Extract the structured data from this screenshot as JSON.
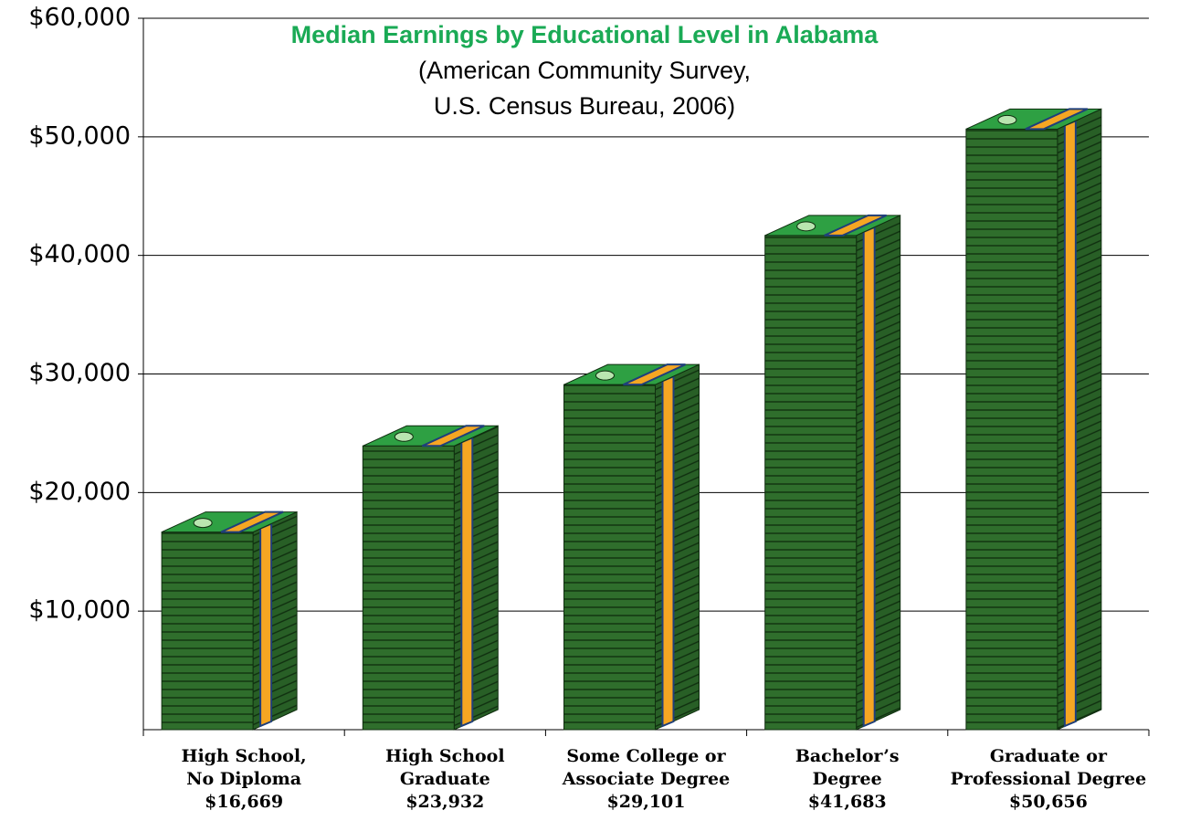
{
  "chart_data": {
    "type": "bar",
    "title": "Median Earnings by Educational Level in Alabama",
    "subtitle": [
      "(American Community Survey,",
      "U.S. Census Bureau, 2006)"
    ],
    "categories": [
      [
        "High School,",
        "No Diploma"
      ],
      [
        "High School",
        "Graduate"
      ],
      [
        "Some College or",
        "Associate Degree"
      ],
      [
        "Bachelor’s",
        "Degree"
      ],
      [
        "Graduate or",
        "Professional Degree"
      ]
    ],
    "values": [
      16669,
      23932,
      29101,
      41683,
      50656
    ],
    "value_labels": [
      "$16,669",
      "$23,932",
      "$29,101",
      "$41,683",
      "$50,656"
    ],
    "color": "#2f6e2c",
    "ylim": [
      0,
      60000
    ],
    "yticks": [
      {
        "value": 10000,
        "label": "$10,000"
      },
      {
        "value": 20000,
        "label": "$20,000"
      },
      {
        "value": 30000,
        "label": "$30,000"
      },
      {
        "value": 40000,
        "label": "$40,000"
      },
      {
        "value": 50000,
        "label": "$50,000"
      },
      {
        "value": 60000,
        "label": "$60,000"
      }
    ],
    "grid": true
  }
}
